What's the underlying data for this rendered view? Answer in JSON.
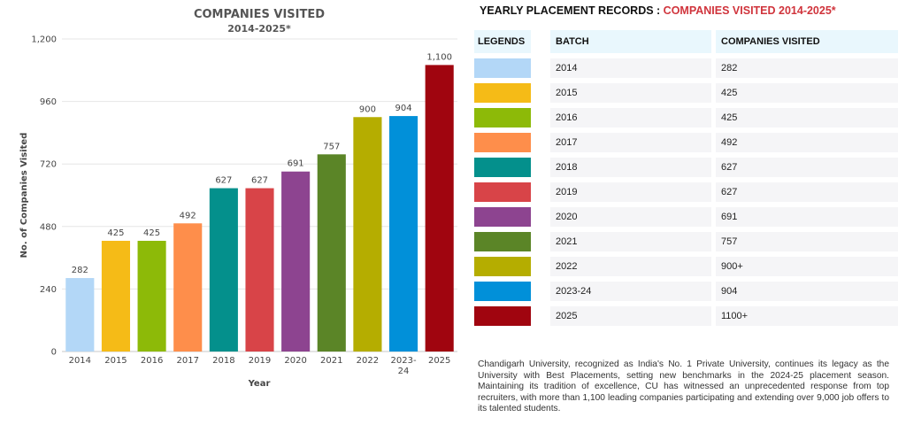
{
  "chart_data": {
    "type": "bar",
    "title": "COMPANIES VISITED",
    "subtitle": "2014-2025*",
    "xlabel": "Year",
    "ylabel": "No. of Companies Visited",
    "ylim": [
      0,
      1200
    ],
    "yticks": [
      0,
      240,
      480,
      720,
      960,
      1200
    ],
    "ytick_labels": [
      "0",
      "240",
      "480",
      "720",
      "960",
      "1,200"
    ],
    "categories": [
      "2014",
      "2015",
      "2016",
      "2017",
      "2018",
      "2019",
      "2020",
      "2021",
      "2022",
      "2023-24",
      "2025"
    ],
    "values": [
      282,
      425,
      425,
      492,
      627,
      627,
      691,
      757,
      900,
      904,
      1100
    ],
    "value_labels": [
      "282",
      "425",
      "425",
      "492",
      "627",
      "627",
      "691",
      "757",
      "900",
      "904",
      "1,100"
    ],
    "colors": [
      "#b3d7f7",
      "#f5bb17",
      "#8dba08",
      "#fe8e4b",
      "#04908c",
      "#d84448",
      "#8d4490",
      "#5b8527",
      "#b5ad00",
      "#0190d9",
      "#a0050f"
    ],
    "grid": true,
    "legend": "none"
  },
  "records": {
    "title_prefix": "YEARLY PLACEMENT RECORDS : ",
    "title_highlight": "COMPANIES VISITED 2014-2025*",
    "headers": {
      "legends": "LEGENDS",
      "batch": "BATCH",
      "companies": "COMPANIES VISITED"
    },
    "rows": [
      {
        "batch": "2014",
        "companies": "282",
        "color": "#b3d7f7"
      },
      {
        "batch": "2015",
        "companies": "425",
        "color": "#f5bb17"
      },
      {
        "batch": "2016",
        "companies": "425",
        "color": "#8dba08"
      },
      {
        "batch": "2017",
        "companies": "492",
        "color": "#fe8e4b"
      },
      {
        "batch": "2018",
        "companies": "627",
        "color": "#04908c"
      },
      {
        "batch": "2019",
        "companies": "627",
        "color": "#d84448"
      },
      {
        "batch": "2020",
        "companies": "691",
        "color": "#8d4490"
      },
      {
        "batch": "2021",
        "companies": "757",
        "color": "#5b8527"
      },
      {
        "batch": "2022",
        "companies": "900+",
        "color": "#b5ad00"
      },
      {
        "batch": "2023-24",
        "companies": "904",
        "color": "#0190d9"
      },
      {
        "batch": "2025",
        "companies": "1100+",
        "color": "#a0050f"
      }
    ]
  },
  "description": "Chandigarh University, recognized as India's No. 1 Private University, continues its legacy as the University with Best Placements, setting new benchmarks in the 2024-25 placement season. Maintaining its tradition of excellence, CU has witnessed an unprecedented response from top recruiters, with more than 1,100 leading companies participating and extending over 9,000 job offers to its talented students."
}
